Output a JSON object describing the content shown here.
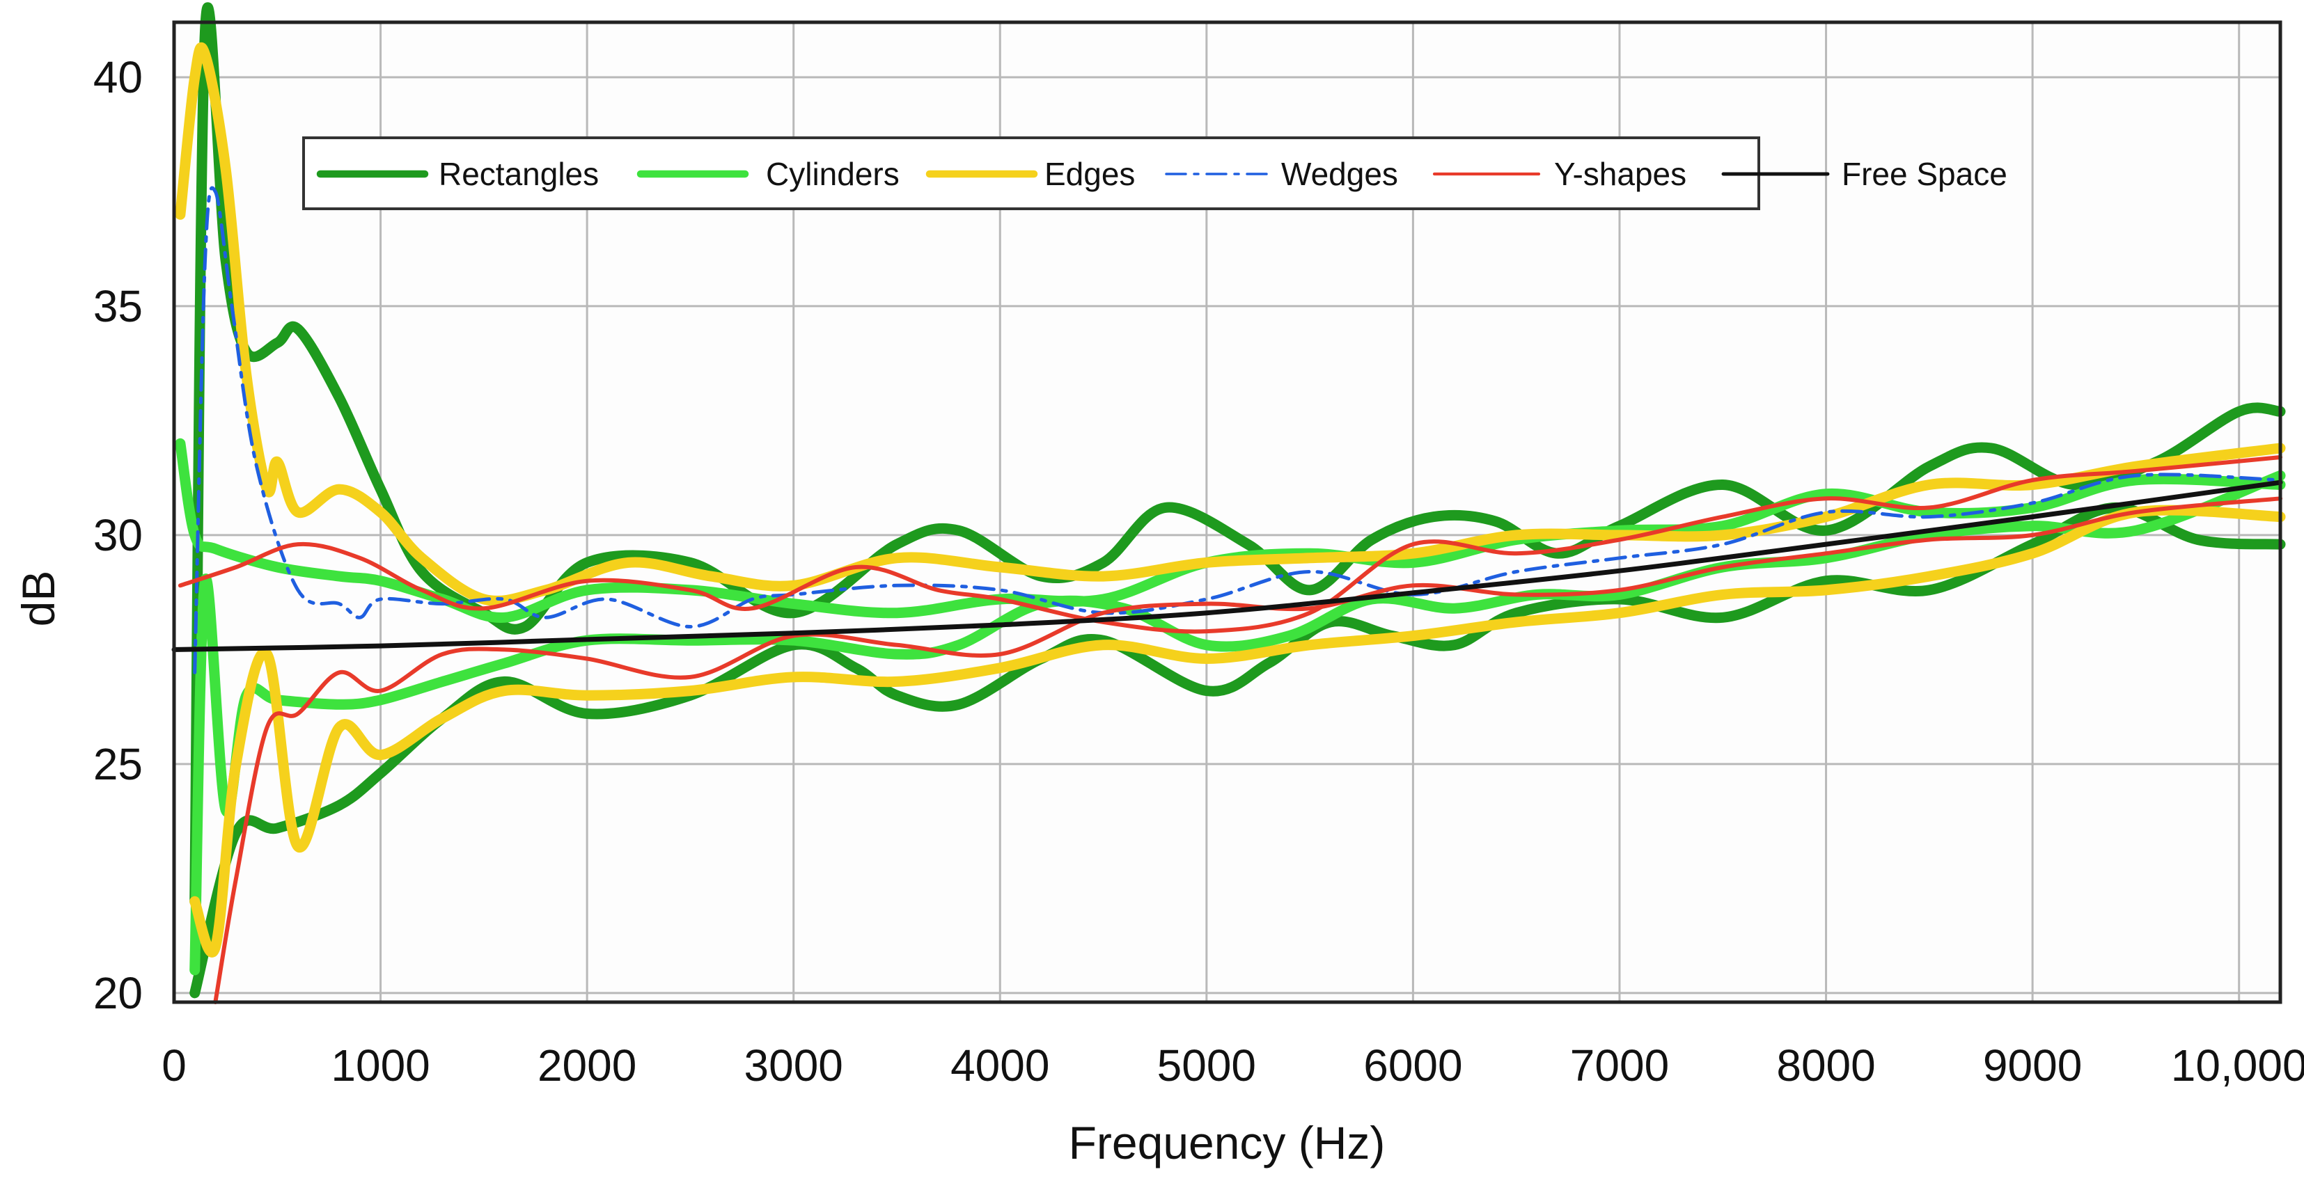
{
  "chart_data": {
    "type": "line",
    "title": "",
    "xlabel": "Frequency (Hz)",
    "ylabel": "dB",
    "xlim": [
      0,
      10200
    ],
    "ylim": [
      19.8,
      41.2
    ],
    "x_ticks": [
      0,
      1000,
      2000,
      3000,
      4000,
      5000,
      6000,
      7000,
      8000,
      9000,
      10000
    ],
    "x_tick_labels": [
      "0",
      "1000",
      "2000",
      "3000",
      "4000",
      "5000",
      "6000",
      "7000",
      "8000",
      "9000",
      "10,000"
    ],
    "y_ticks": [
      20,
      25,
      30,
      35,
      40
    ],
    "y_tick_labels": [
      "20",
      "25",
      "30",
      "35",
      "40"
    ],
    "grid": true,
    "legend_position": "top",
    "series": [
      {
        "name": "Rectangles",
        "color": "#1e9a1e",
        "style": "solid",
        "curves": [
          [
            [
              100,
              22
            ],
            [
              150,
              41
            ],
            [
              250,
              36
            ],
            [
              350,
              34
            ],
            [
              500,
              34.2
            ],
            [
              600,
              34.5
            ],
            [
              800,
              33
            ],
            [
              1000,
              31
            ],
            [
              1200,
              29.2
            ],
            [
              1500,
              28.3
            ],
            [
              1700,
              28
            ],
            [
              2000,
              29.4
            ],
            [
              2500,
              29.4
            ],
            [
              3000,
              28.3
            ],
            [
              3500,
              29.8
            ],
            [
              3800,
              30.1
            ],
            [
              4200,
              29.1
            ],
            [
              4500,
              29.4
            ],
            [
              4800,
              30.6
            ],
            [
              5200,
              29.8
            ],
            [
              5500,
              28.8
            ],
            [
              5800,
              29.9
            ],
            [
              6100,
              30.4
            ],
            [
              6400,
              30.3
            ],
            [
              6700,
              29.6
            ],
            [
              7000,
              30.2
            ],
            [
              7500,
              31.1
            ],
            [
              8000,
              30.1
            ],
            [
              8500,
              31.5
            ],
            [
              8800,
              31.9
            ],
            [
              9200,
              31.1
            ],
            [
              9600,
              31.6
            ],
            [
              10000,
              32.7
            ],
            [
              10200,
              32.7
            ]
          ],
          [
            [
              100,
              20
            ],
            [
              300,
              23.5
            ],
            [
              500,
              23.6
            ],
            [
              800,
              24.1
            ],
            [
              1000,
              24.8
            ],
            [
              1300,
              26
            ],
            [
              1600,
              26.8
            ],
            [
              2000,
              26.1
            ],
            [
              2500,
              26.5
            ],
            [
              3000,
              27.6
            ],
            [
              3300,
              27.1
            ],
            [
              3500,
              26.5
            ],
            [
              3800,
              26.3
            ],
            [
              4200,
              27.3
            ],
            [
              4500,
              27.7
            ],
            [
              5000,
              26.6
            ],
            [
              5300,
              27.2
            ],
            [
              5600,
              28.1
            ],
            [
              5900,
              27.8
            ],
            [
              6200,
              27.6
            ],
            [
              6500,
              28.3
            ],
            [
              7000,
              28.6
            ],
            [
              7500,
              28.2
            ],
            [
              8000,
              29
            ],
            [
              8500,
              28.8
            ],
            [
              9000,
              29.8
            ],
            [
              9400,
              30.6
            ],
            [
              9800,
              29.9
            ],
            [
              10200,
              29.8
            ]
          ]
        ]
      },
      {
        "name": "Cylinders",
        "color": "#3ee23e",
        "style": "solid",
        "curves": [
          [
            [
              30,
              32
            ],
            [
              100,
              30
            ],
            [
              200,
              29.7
            ],
            [
              500,
              29.3
            ],
            [
              800,
              29.1
            ],
            [
              1000,
              29
            ],
            [
              1300,
              28.6
            ],
            [
              1600,
              28.2
            ],
            [
              2000,
              28.8
            ],
            [
              2500,
              28.8
            ],
            [
              3000,
              28.5
            ],
            [
              3500,
              28.3
            ],
            [
              4000,
              28.6
            ],
            [
              4500,
              28.6
            ],
            [
              5000,
              29.4
            ],
            [
              5500,
              29.6
            ],
            [
              6000,
              29.4
            ],
            [
              6500,
              29.9
            ],
            [
              7000,
              30.1
            ],
            [
              7500,
              30.2
            ],
            [
              8000,
              30.9
            ],
            [
              8500,
              30.5
            ],
            [
              9000,
              30.6
            ],
            [
              9500,
              31.2
            ],
            [
              10200,
              31.1
            ]
          ],
          [
            [
              100,
              20.5
            ],
            [
              150,
              29
            ],
            [
              250,
              24
            ],
            [
              350,
              26.5
            ],
            [
              500,
              26.4
            ],
            [
              800,
              26.3
            ],
            [
              1000,
              26.4
            ],
            [
              1300,
              26.8
            ],
            [
              1600,
              27.2
            ],
            [
              2000,
              27.7
            ],
            [
              2500,
              27.7
            ],
            [
              3000,
              27.7
            ],
            [
              3500,
              27.4
            ],
            [
              3800,
              27.6
            ],
            [
              4200,
              28.5
            ],
            [
              4600,
              28.4
            ],
            [
              5000,
              27.6
            ],
            [
              5400,
              27.8
            ],
            [
              5800,
              28.6
            ],
            [
              6200,
              28.4
            ],
            [
              6600,
              28.7
            ],
            [
              7000,
              28.7
            ],
            [
              7500,
              29.3
            ],
            [
              8000,
              29.5
            ],
            [
              8500,
              30
            ],
            [
              9000,
              30.2
            ],
            [
              9500,
              30.1
            ],
            [
              10200,
              31.3
            ]
          ]
        ]
      },
      {
        "name": "Edges",
        "color": "#f5d11c",
        "style": "solid",
        "curves": [
          [
            [
              30,
              37
            ],
            [
              100,
              40
            ],
            [
              150,
              40.5
            ],
            [
              250,
              38
            ],
            [
              350,
              33.5
            ],
            [
              450,
              31
            ],
            [
              500,
              31.6
            ],
            [
              600,
              30.5
            ],
            [
              800,
              31
            ],
            [
              1000,
              30.5
            ],
            [
              1200,
              29.5
            ],
            [
              1500,
              28.6
            ],
            [
              1800,
              28.8
            ],
            [
              2200,
              29.4
            ],
            [
              2600,
              29.1
            ],
            [
              3000,
              28.9
            ],
            [
              3500,
              29.5
            ],
            [
              4000,
              29.3
            ],
            [
              4500,
              29.1
            ],
            [
              5000,
              29.4
            ],
            [
              5500,
              29.5
            ],
            [
              6000,
              29.6
            ],
            [
              6500,
              30
            ],
            [
              7000,
              30
            ],
            [
              7500,
              30
            ],
            [
              8000,
              30.4
            ],
            [
              8500,
              31.1
            ],
            [
              9000,
              31.1
            ],
            [
              9500,
              31.5
            ],
            [
              10200,
              31.9
            ]
          ],
          [
            [
              100,
              22
            ],
            [
              200,
              21
            ],
            [
              300,
              25
            ],
            [
              450,
              27.4
            ],
            [
              600,
              23.2
            ],
            [
              800,
              25.8
            ],
            [
              1000,
              25.2
            ],
            [
              1300,
              26
            ],
            [
              1600,
              26.6
            ],
            [
              2000,
              26.5
            ],
            [
              2500,
              26.6
            ],
            [
              3000,
              26.9
            ],
            [
              3500,
              26.8
            ],
            [
              4000,
              27.1
            ],
            [
              4500,
              27.6
            ],
            [
              5000,
              27.3
            ],
            [
              5500,
              27.6
            ],
            [
              6000,
              27.8
            ],
            [
              6500,
              28.1
            ],
            [
              7000,
              28.3
            ],
            [
              7500,
              28.7
            ],
            [
              8000,
              28.8
            ],
            [
              8500,
              29.1
            ],
            [
              9000,
              29.6
            ],
            [
              9500,
              30.5
            ],
            [
              10200,
              30.4
            ]
          ]
        ]
      },
      {
        "name": "Wedges",
        "color": "#1f5fe0",
        "style": "dashdot",
        "curves": [
          [
            [
              100,
              27
            ],
            [
              150,
              36
            ],
            [
              200,
              37.5
            ],
            [
              280,
              35
            ],
            [
              400,
              31.5
            ],
            [
              600,
              28.8
            ],
            [
              800,
              28.5
            ],
            [
              900,
              28.2
            ],
            [
              1000,
              28.6
            ],
            [
              1300,
              28.5
            ],
            [
              1600,
              28.6
            ],
            [
              1800,
              28.2
            ],
            [
              2100,
              28.6
            ],
            [
              2500,
              28
            ],
            [
              2800,
              28.6
            ],
            [
              3000,
              28.7
            ],
            [
              3500,
              28.9
            ],
            [
              4000,
              28.8
            ],
            [
              4500,
              28.3
            ],
            [
              5000,
              28.6
            ],
            [
              5500,
              29.2
            ],
            [
              6000,
              28.7
            ],
            [
              6500,
              29.2
            ],
            [
              7000,
              29.5
            ],
            [
              7500,
              29.8
            ],
            [
              8000,
              30.5
            ],
            [
              8500,
              30.4
            ],
            [
              9000,
              30.7
            ],
            [
              9500,
              31.3
            ],
            [
              10200,
              31.2
            ]
          ]
        ]
      },
      {
        "name": "Y-shapes",
        "color": "#e83a2a",
        "style": "solid",
        "curves": [
          [
            [
              30,
              28.9
            ],
            [
              300,
              29.3
            ],
            [
              600,
              29.8
            ],
            [
              900,
              29.5
            ],
            [
              1200,
              28.8
            ],
            [
              1500,
              28.4
            ],
            [
              2000,
              29
            ],
            [
              2500,
              28.8
            ],
            [
              2800,
              28.4
            ],
            [
              3300,
              29.3
            ],
            [
              3700,
              28.8
            ],
            [
              4000,
              28.6
            ],
            [
              4500,
              28.1
            ],
            [
              5000,
              27.9
            ],
            [
              5500,
              28.3
            ],
            [
              6000,
              29.8
            ],
            [
              6500,
              29.6
            ],
            [
              7000,
              29.9
            ],
            [
              7500,
              30.4
            ],
            [
              8000,
              30.8
            ],
            [
              8500,
              30.6
            ],
            [
              9000,
              31.2
            ],
            [
              9500,
              31.4
            ],
            [
              10200,
              31.7
            ]
          ],
          [
            [
              200,
              19.8
            ],
            [
              300,
              22.5
            ],
            [
              450,
              25.8
            ],
            [
              600,
              26.1
            ],
            [
              800,
              27
            ],
            [
              1000,
              26.6
            ],
            [
              1300,
              27.4
            ],
            [
              1600,
              27.5
            ],
            [
              2000,
              27.3
            ],
            [
              2500,
              26.9
            ],
            [
              3000,
              27.8
            ],
            [
              3500,
              27.6
            ],
            [
              4000,
              27.4
            ],
            [
              4500,
              28.3
            ],
            [
              5000,
              28.5
            ],
            [
              5500,
              28.4
            ],
            [
              6000,
              28.9
            ],
            [
              6500,
              28.7
            ],
            [
              7000,
              28.8
            ],
            [
              7500,
              29.3
            ],
            [
              8000,
              29.6
            ],
            [
              8500,
              29.9
            ],
            [
              9000,
              30
            ],
            [
              9500,
              30.5
            ],
            [
              10200,
              30.8
            ]
          ]
        ]
      },
      {
        "name": "Free Space",
        "color": "#111111",
        "style": "solid",
        "curves": [
          [
            [
              0,
              27.5
            ],
            [
              1000,
              27.58
            ],
            [
              2000,
              27.72
            ],
            [
              3000,
              27.86
            ],
            [
              4000,
              28.04
            ],
            [
              5000,
              28.3
            ],
            [
              6000,
              28.74
            ],
            [
              7000,
              29.22
            ],
            [
              8000,
              29.8
            ],
            [
              9000,
              30.4
            ],
            [
              10200,
              31.15
            ]
          ]
        ]
      }
    ]
  }
}
